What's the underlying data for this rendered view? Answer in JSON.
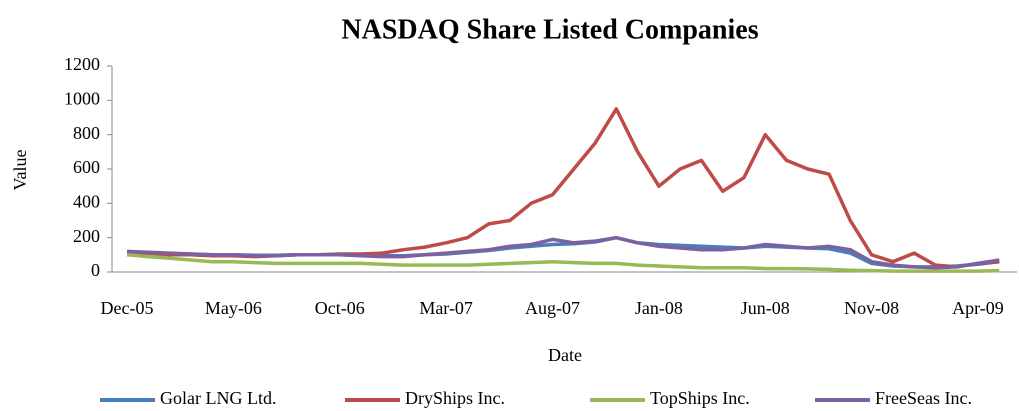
{
  "chart_data": {
    "type": "line",
    "title": "NASDAQ Share Listed Companies",
    "x_label": "Date",
    "y_label": "Value",
    "categories": [
      "Dec-05",
      null,
      null,
      null,
      null,
      "May-06",
      null,
      null,
      null,
      null,
      "Oct-06",
      null,
      null,
      null,
      null,
      "Mar-07",
      null,
      null,
      null,
      null,
      "Aug-07",
      null,
      null,
      null,
      null,
      "Jan-08",
      null,
      null,
      null,
      null,
      "Jun-08",
      null,
      null,
      null,
      null,
      "Nov-08",
      null,
      null,
      null,
      null,
      "Apr-09",
      null
    ],
    "series": [
      {
        "name": "Golar LNG Ltd.",
        "color": "#4a7ebb",
        "values": [
          110,
          112,
          108,
          105,
          100,
          100,
          98,
          98,
          100,
          100,
          100,
          98,
          95,
          95,
          100,
          105,
          115,
          125,
          140,
          150,
          160,
          165,
          175,
          200,
          170,
          160,
          155,
          150,
          145,
          140,
          150,
          145,
          140,
          135,
          110,
          50,
          35,
          30,
          30,
          35,
          45,
          60
        ]
      },
      {
        "name": "DryShips Inc.",
        "color": "#be4b48",
        "values": [
          110,
          110,
          100,
          100,
          95,
          95,
          90,
          95,
          100,
          100,
          105,
          105,
          110,
          130,
          145,
          170,
          200,
          280,
          300,
          400,
          450,
          600,
          750,
          950,
          700,
          500,
          600,
          650,
          470,
          550,
          800,
          650,
          600,
          570,
          300,
          100,
          60,
          110,
          40,
          30,
          50,
          60
        ]
      },
      {
        "name": "TopShips Inc.",
        "color": "#98b954",
        "values": [
          100,
          90,
          80,
          70,
          60,
          60,
          55,
          50,
          50,
          50,
          50,
          50,
          45,
          40,
          40,
          40,
          40,
          45,
          50,
          55,
          60,
          55,
          50,
          50,
          40,
          35,
          30,
          25,
          25,
          25,
          20,
          20,
          18,
          15,
          10,
          8,
          5,
          5,
          5,
          5,
          5,
          8
        ]
      },
      {
        "name": "FreeSeas Inc.",
        "color": "#7d60a0",
        "values": [
          120,
          115,
          110,
          105,
          100,
          100,
          95,
          95,
          100,
          100,
          100,
          95,
          90,
          90,
          100,
          110,
          120,
          130,
          150,
          160,
          190,
          170,
          180,
          200,
          170,
          150,
          140,
          130,
          130,
          140,
          160,
          150,
          140,
          150,
          130,
          60,
          40,
          30,
          25,
          30,
          50,
          70
        ]
      }
    ],
    "ylim": [
      0,
      1200
    ],
    "yticks": [
      0,
      200,
      400,
      600,
      800,
      1000,
      1200
    ],
    "grid": false,
    "legend": "bottom"
  }
}
